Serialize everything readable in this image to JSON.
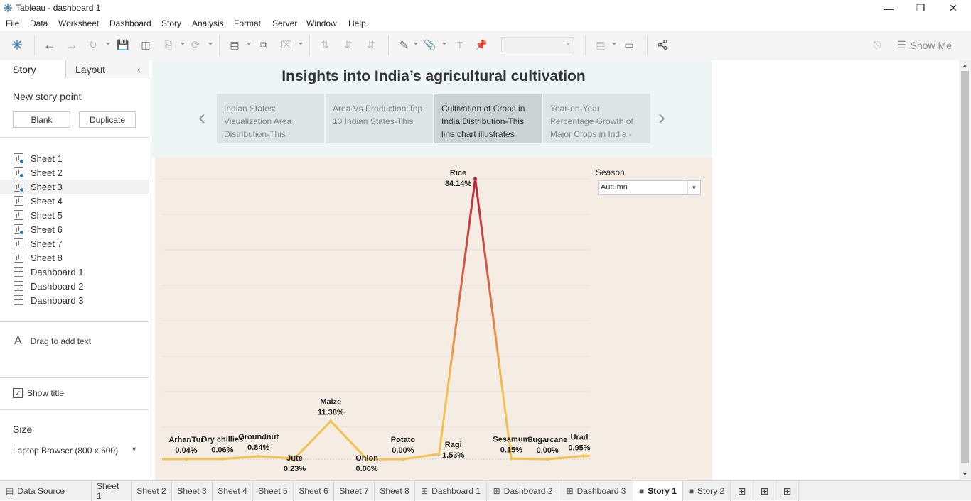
{
  "window": {
    "title": "Tableau - dashboard 1"
  },
  "menu": [
    "File",
    "Data",
    "Worksheet",
    "Dashboard",
    "Story",
    "Analysis",
    "Format",
    "Server",
    "Window",
    "Help"
  ],
  "toolbar": {
    "show_me_label": "Show Me"
  },
  "left_panel": {
    "tab_story": "Story",
    "tab_layout": "Layout",
    "new_story_point": "New story point",
    "blank_button": "Blank",
    "duplicate_button": "Duplicate",
    "sheets": [
      {
        "label": "Sheet 1",
        "type": "worksheet",
        "used": true
      },
      {
        "label": "Sheet 2",
        "type": "worksheet",
        "used": true
      },
      {
        "label": "Sheet 3",
        "type": "worksheet",
        "used": true
      },
      {
        "label": "Sheet 4",
        "type": "worksheet",
        "used": false
      },
      {
        "label": "Sheet 5",
        "type": "worksheet",
        "used": false
      },
      {
        "label": "Sheet 6",
        "type": "worksheet",
        "used": true
      },
      {
        "label": "Sheet 7",
        "type": "worksheet",
        "used": false
      },
      {
        "label": "Sheet 8",
        "type": "worksheet",
        "used": false
      },
      {
        "label": "Dashboard 1",
        "type": "dashboard",
        "used": false
      },
      {
        "label": "Dashboard 2",
        "type": "dashboard",
        "used": false
      },
      {
        "label": "Dashboard 3",
        "type": "dashboard",
        "used": false
      }
    ],
    "drag_text": "Drag to add text",
    "show_title": "Show title",
    "size_heading": "Size",
    "size_value": "Laptop Browser (800 x 600)"
  },
  "story": {
    "title": "Insights into India’s agricultural cultivation",
    "points": [
      {
        "text": "Indian States: Visualization Area Distribution-This",
        "active": false
      },
      {
        "text": "Area Vs Production:Top 10 Indian States-This",
        "active": false
      },
      {
        "text": "Cultivation of Crops in India:Distribution-This line chart illustrates",
        "active": true
      },
      {
        "text": "Year-on-Year Percentage Growth of Major Crops in India -",
        "active": false
      }
    ]
  },
  "filter": {
    "label": "Season",
    "value": "Autumn"
  },
  "chart_data": {
    "type": "line",
    "categories": [
      "Arhar/Tur",
      "Dry chillies",
      "Groundnut",
      "Jute",
      "Maize",
      "Onion",
      "Potato",
      "Ragi",
      "Rice",
      "Sesamum",
      "Sugarcane",
      "Urad"
    ],
    "values": [
      0.04,
      0.06,
      0.84,
      0.23,
      11.38,
      0.0,
      0.0,
      1.53,
      84.14,
      0.15,
      0.0,
      0.95
    ],
    "value_labels": [
      "0.04%",
      "0.06%",
      "0.84%",
      "0.23%",
      "11.38%",
      "0.00%",
      "0.00%",
      "1.53%",
      "84.14%",
      "0.15%",
      "0.00%",
      "0.95%"
    ],
    "ylim": [
      0,
      90
    ],
    "color_low": "#f2c14e",
    "color_high": "#b5263b"
  },
  "bottom_tabs": [
    {
      "label": "Data Source",
      "icon": "database-icon",
      "active": false
    },
    {
      "label": "Sheet 1",
      "active": false
    },
    {
      "label": "Sheet 2",
      "active": false
    },
    {
      "label": "Sheet 3",
      "active": false
    },
    {
      "label": "Sheet 4",
      "active": false
    },
    {
      "label": "Sheet 5",
      "active": false
    },
    {
      "label": "Sheet 6",
      "active": false
    },
    {
      "label": "Sheet 7",
      "active": false
    },
    {
      "label": "Sheet 8",
      "active": false
    },
    {
      "label": "Dashboard 1",
      "icon": "dashboard-icon",
      "active": false
    },
    {
      "label": "Dashboard 2",
      "icon": "dashboard-icon",
      "active": false
    },
    {
      "label": "Dashboard 3",
      "icon": "dashboard-icon",
      "active": false
    },
    {
      "label": "Story 1",
      "icon": "story-icon",
      "active": true
    },
    {
      "label": "Story 2",
      "icon": "story-icon",
      "active": false
    }
  ]
}
